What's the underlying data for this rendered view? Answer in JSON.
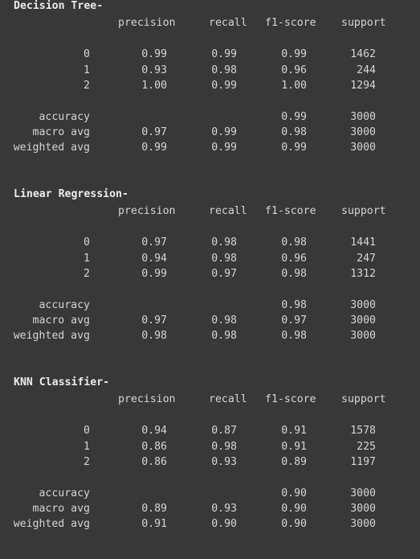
{
  "headers": [
    "precision",
    "recall",
    "f1-score",
    "support"
  ],
  "reports": [
    {
      "title": "Decision Tree-",
      "classes": [
        {
          "label": "0",
          "precision": "0.99",
          "recall": "0.99",
          "f1": "0.99",
          "support": "1462"
        },
        {
          "label": "1",
          "precision": "0.93",
          "recall": "0.98",
          "f1": "0.96",
          "support": "244"
        },
        {
          "label": "2",
          "precision": "1.00",
          "recall": "0.99",
          "f1": "1.00",
          "support": "1294"
        }
      ],
      "accuracy": {
        "label": "accuracy",
        "f1": "0.99",
        "support": "3000"
      },
      "macro": {
        "label": "macro avg",
        "precision": "0.97",
        "recall": "0.99",
        "f1": "0.98",
        "support": "3000"
      },
      "weighted": {
        "label": "weighted avg",
        "precision": "0.99",
        "recall": "0.99",
        "f1": "0.99",
        "support": "3000"
      }
    },
    {
      "title": "Linear Regression-",
      "classes": [
        {
          "label": "0",
          "precision": "0.97",
          "recall": "0.98",
          "f1": "0.98",
          "support": "1441"
        },
        {
          "label": "1",
          "precision": "0.94",
          "recall": "0.98",
          "f1": "0.96",
          "support": "247"
        },
        {
          "label": "2",
          "precision": "0.99",
          "recall": "0.97",
          "f1": "0.98",
          "support": "1312"
        }
      ],
      "accuracy": {
        "label": "accuracy",
        "f1": "0.98",
        "support": "3000"
      },
      "macro": {
        "label": "macro avg",
        "precision": "0.97",
        "recall": "0.98",
        "f1": "0.97",
        "support": "3000"
      },
      "weighted": {
        "label": "weighted avg",
        "precision": "0.98",
        "recall": "0.98",
        "f1": "0.98",
        "support": "3000"
      }
    },
    {
      "title": "KNN Classifier-",
      "classes": [
        {
          "label": "0",
          "precision": "0.94",
          "recall": "0.87",
          "f1": "0.91",
          "support": "1578"
        },
        {
          "label": "1",
          "precision": "0.86",
          "recall": "0.98",
          "f1": "0.91",
          "support": "225"
        },
        {
          "label": "2",
          "precision": "0.86",
          "recall": "0.93",
          "f1": "0.89",
          "support": "1197"
        }
      ],
      "accuracy": {
        "label": "accuracy",
        "f1": "0.90",
        "support": "3000"
      },
      "macro": {
        "label": "macro avg",
        "precision": "0.89",
        "recall": "0.93",
        "f1": "0.90",
        "support": "3000"
      },
      "weighted": {
        "label": "weighted avg",
        "precision": "0.91",
        "recall": "0.90",
        "f1": "0.90",
        "support": "3000"
      }
    }
  ]
}
